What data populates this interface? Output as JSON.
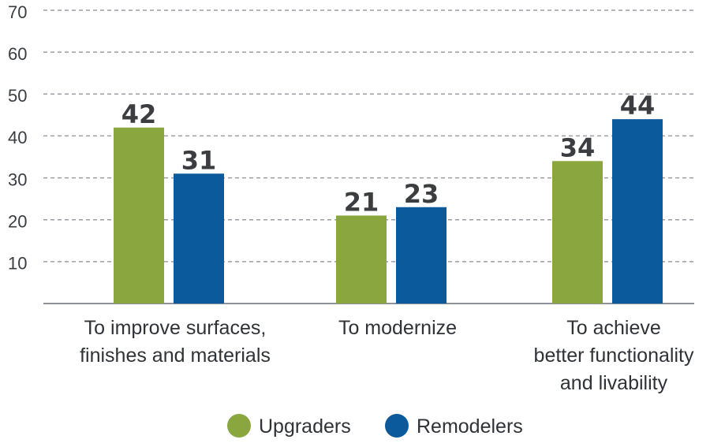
{
  "chart_data": {
    "type": "bar",
    "categories": [
      [
        "To improve surfaces,",
        "finishes and materials"
      ],
      [
        "To modernize"
      ],
      [
        "To achieve",
        "better functionality",
        "and livability"
      ]
    ],
    "series": [
      {
        "name": "Upgraders",
        "values": [
          42,
          21,
          34
        ],
        "color": "#8aa63f"
      },
      {
        "name": "Remodelers",
        "values": [
          31,
          23,
          44
        ],
        "color": "#0a5a9c"
      }
    ],
    "yticks": [
      10,
      20,
      30,
      40,
      50,
      60,
      70
    ],
    "ylim": [
      0,
      70
    ],
    "grid": true,
    "legend": "bottom-center",
    "title": "",
    "xlabel": "",
    "ylabel": ""
  }
}
